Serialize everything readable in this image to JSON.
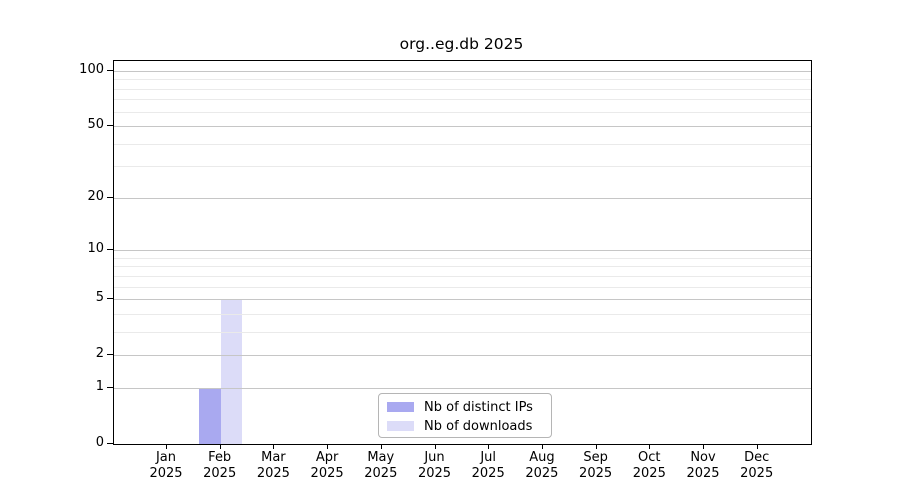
{
  "chart_data": {
    "type": "bar",
    "title": "org..eg.db 2025",
    "year": "2025",
    "categories": [
      "Jan",
      "Feb",
      "Mar",
      "Apr",
      "May",
      "Jun",
      "Jul",
      "Aug",
      "Sep",
      "Oct",
      "Nov",
      "Dec"
    ],
    "series": [
      {
        "name": "Nb of distinct IPs",
        "color": "#a9a9f0",
        "values": [
          0,
          1,
          0,
          0,
          0,
          0,
          0,
          0,
          0,
          0,
          0,
          0
        ]
      },
      {
        "name": "Nb of downloads",
        "color": "#dcdcf8",
        "values": [
          0,
          5,
          0,
          0,
          0,
          0,
          0,
          0,
          0,
          0,
          0,
          0
        ]
      }
    ],
    "yscale": "log1p",
    "yticks": [
      0,
      1,
      2,
      5,
      10,
      20,
      50,
      100
    ],
    "minor_yticks": [
      3,
      4,
      6,
      7,
      8,
      9,
      30,
      40,
      60,
      70,
      80,
      90
    ],
    "ylim": [
      0,
      113
    ],
    "xlabel": "",
    "ylabel": "",
    "grid": "horizontal",
    "legend_position": "bottom-center-inside",
    "colors": {
      "bar_distinct_ips": "#a9a9f0",
      "bar_downloads": "#dcdcf8",
      "grid_major": "#c6c6c6",
      "grid_minor": "#eaeaea",
      "spine": "#000000"
    }
  }
}
